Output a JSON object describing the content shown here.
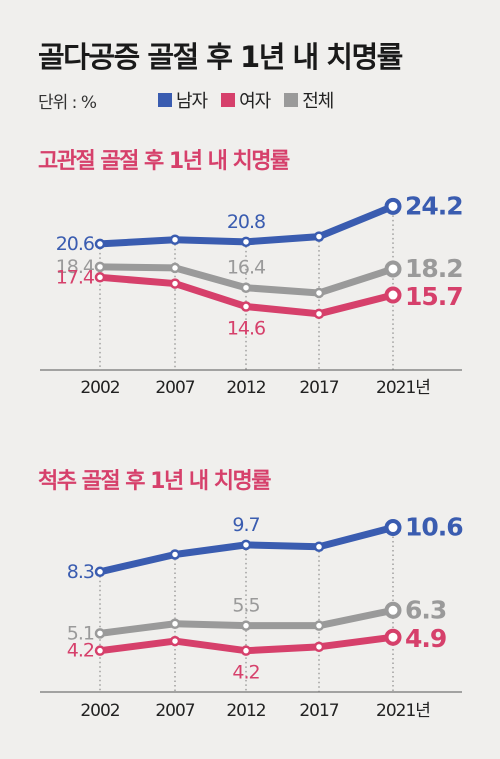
{
  "title": "골다공증 골절 후 1년 내 치명률",
  "unit_label": "단위 : %",
  "legend": [
    {
      "name": "남자",
      "color": "#3a5cb0"
    },
    {
      "name": "여자",
      "color": "#d6406b"
    },
    {
      "name": "전체",
      "color": "#9a9a9a"
    }
  ],
  "colors": {
    "male": "#3a5cb0",
    "female": "#d6406b",
    "total": "#9a9a9a",
    "subtitle": "#d6406b"
  },
  "chart_data": [
    {
      "type": "line",
      "title": "고관절 골절 후 1년 내 치명률",
      "x": [
        "2002",
        "2007",
        "2012",
        "2017",
        "2021년"
      ],
      "ylim": [
        13.5,
        25
      ],
      "grid": false,
      "legend": "top-left",
      "series": [
        {
          "name": "남자",
          "values": [
            20.6,
            21.0,
            20.8,
            21.3,
            24.2
          ]
        },
        {
          "name": "전체",
          "values": [
            18.4,
            18.3,
            16.4,
            15.9,
            18.2
          ]
        },
        {
          "name": "여자",
          "values": [
            17.4,
            16.8,
            14.6,
            13.9,
            15.7
          ]
        }
      ],
      "labels": [
        {
          "series": "남자",
          "index": 0,
          "text": "20.6"
        },
        {
          "series": "남자",
          "index": 2,
          "text": "20.8"
        },
        {
          "series": "남자",
          "index": 4,
          "text": "24.2"
        },
        {
          "series": "전체",
          "index": 0,
          "text": "18.4"
        },
        {
          "series": "전체",
          "index": 2,
          "text": "16.4"
        },
        {
          "series": "전체",
          "index": 4,
          "text": "18.2"
        },
        {
          "series": "여자",
          "index": 0,
          "text": "17.4"
        },
        {
          "series": "여자",
          "index": 2,
          "text": "14.6"
        },
        {
          "series": "여자",
          "index": 4,
          "text": "15.7"
        }
      ]
    },
    {
      "type": "line",
      "title": "척추 골절 후 1년 내 치명률",
      "x": [
        "2002",
        "2007",
        "2012",
        "2017",
        "2021년"
      ],
      "ylim": [
        3.3,
        11.2
      ],
      "grid": false,
      "legend": "top-left",
      "series": [
        {
          "name": "남자",
          "values": [
            8.3,
            9.2,
            9.7,
            9.6,
            10.6
          ]
        },
        {
          "name": "전체",
          "values": [
            5.1,
            5.6,
            5.5,
            5.5,
            6.3
          ]
        },
        {
          "name": "여자",
          "values": [
            4.2,
            4.7,
            4.2,
            4.4,
            4.9
          ]
        }
      ],
      "labels": [
        {
          "series": "남자",
          "index": 0,
          "text": "8.3"
        },
        {
          "series": "남자",
          "index": 2,
          "text": "9.7"
        },
        {
          "series": "남자",
          "index": 4,
          "text": "10.6"
        },
        {
          "series": "전체",
          "index": 0,
          "text": "5.1"
        },
        {
          "series": "전체",
          "index": 2,
          "text": "5.5"
        },
        {
          "series": "전체",
          "index": 4,
          "text": "6.3"
        },
        {
          "series": "여자",
          "index": 0,
          "text": "4.2"
        },
        {
          "series": "여자",
          "index": 2,
          "text": "4.2"
        },
        {
          "series": "여자",
          "index": 4,
          "text": "4.9"
        }
      ]
    }
  ]
}
